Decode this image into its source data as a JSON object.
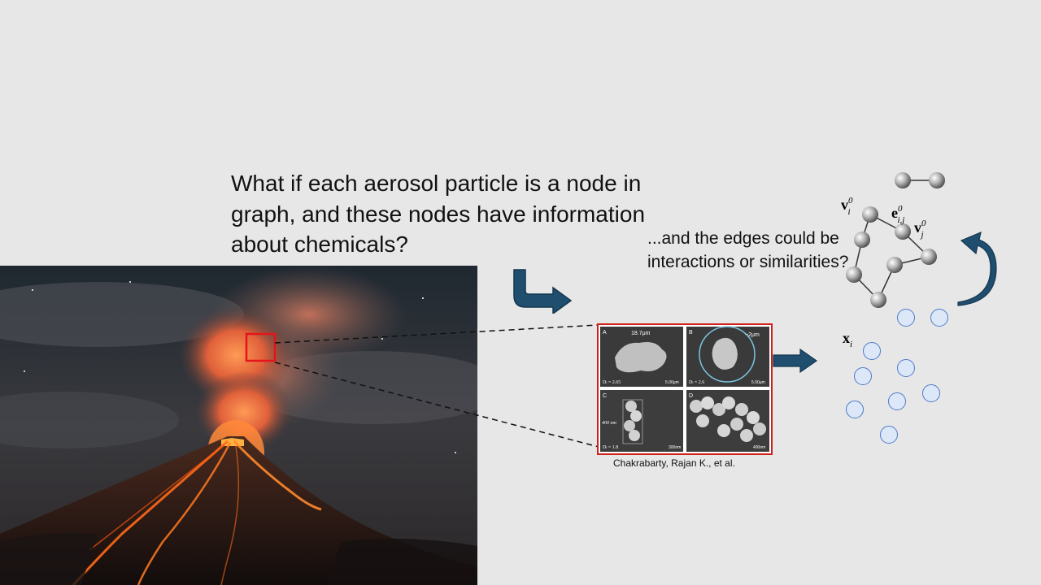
{
  "slide": {
    "main_text": "What if each aerosol particle is a node in graph, and these nodes have information about chemicals?",
    "side_text": "...and the edges could be interactions or similarities?",
    "citation": "Chakrabarty, Rajan K., et al."
  },
  "sem_figure": {
    "panels": [
      {
        "letter": "A",
        "size_label": "18.7μm",
        "df_label": "Dₗ = 2.65",
        "scale": "5.00μm"
      },
      {
        "letter": "B",
        "size_label": "~2μm",
        "df_label": "Dₗ = 2.6",
        "scale": "5.00μm"
      },
      {
        "letter": "C",
        "size_label": "400 nm",
        "df_label": "Dₗ = 1.8",
        "scale": "300nm"
      },
      {
        "letter": "D",
        "size_label": "",
        "df_label": "",
        "scale": "400nm"
      }
    ]
  },
  "graph_labels": {
    "node_label": "v",
    "edge_label": "e",
    "feature_label": "x"
  },
  "colors": {
    "background": "#e7e7e7",
    "arrow": "#1f4e6e",
    "highlight_box": "#d0201b",
    "node_circle_fill": "#dce8f8",
    "node_circle_stroke": "#4f79c9"
  }
}
